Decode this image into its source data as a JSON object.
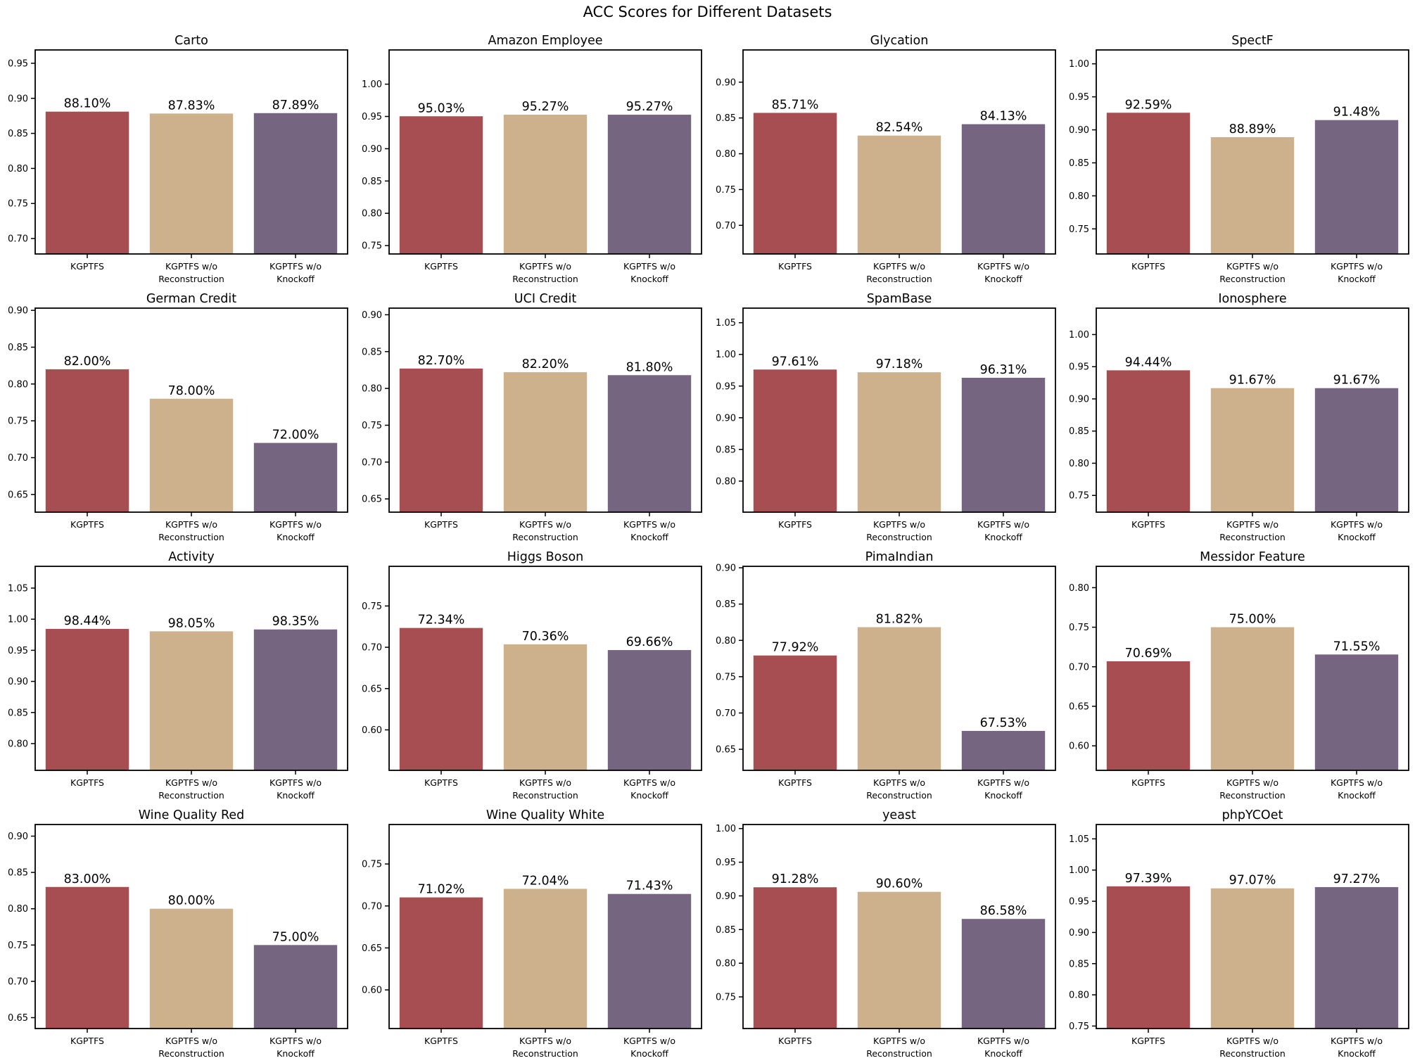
{
  "chart_data": {
    "type": "bar-grid",
    "suptitle": "ACC Scores for Different Datasets",
    "grid_rows": 4,
    "grid_cols": 4,
    "categories": [
      "KGPTFS",
      "KGPTFS w/o\nReconstruction",
      "KGPTFS w/o\nKnockoff"
    ],
    "series_colors": [
      "#A64E52",
      "#CCB18C",
      "#756580"
    ],
    "axis_color": "#000000",
    "background_color": "#ffffff",
    "grid_lines": false,
    "legend": "none",
    "ytick_format": "2-decimal",
    "subplots": [
      {
        "title": "Carto",
        "values": [
          0.881,
          0.8783,
          0.8789
        ],
        "labels": [
          "88.10%",
          "87.83%",
          "87.89%"
        ],
        "yticks": [
          0.7,
          0.75,
          0.8,
          0.85,
          0.9,
          0.95
        ],
        "ylim": [
          0.678,
          0.969
        ]
      },
      {
        "title": "Amazon Employee",
        "values": [
          0.9503,
          0.9527,
          0.9527
        ],
        "labels": [
          "95.03%",
          "95.27%",
          "95.27%"
        ],
        "yticks": [
          0.75,
          0.8,
          0.85,
          0.9,
          0.95,
          1.0
        ],
        "ylim": [
          0.737,
          1.053
        ]
      },
      {
        "title": "Glycation",
        "values": [
          0.8571,
          0.8254,
          0.8413
        ],
        "labels": [
          "85.71%",
          "82.54%",
          "84.13%"
        ],
        "yticks": [
          0.7,
          0.75,
          0.8,
          0.85,
          0.9
        ],
        "ylim": [
          0.66,
          0.945
        ]
      },
      {
        "title": "SpectF",
        "values": [
          0.9259,
          0.8889,
          0.9148
        ],
        "labels": [
          "92.59%",
          "88.89%",
          "91.48%"
        ],
        "yticks": [
          0.75,
          0.8,
          0.85,
          0.9,
          0.95,
          1.0
        ],
        "ylim": [
          0.712,
          1.021
        ]
      },
      {
        "title": "German Credit",
        "values": [
          0.82,
          0.78,
          0.72
        ],
        "labels": [
          "82.00%",
          "78.00%",
          "72.00%"
        ],
        "yticks": [
          0.65,
          0.7,
          0.75,
          0.8,
          0.85,
          0.9
        ],
        "ylim": [
          0.626,
          0.903
        ]
      },
      {
        "title": "UCI Credit",
        "values": [
          0.827,
          0.822,
          0.818
        ],
        "labels": [
          "82.70%",
          "82.20%",
          "81.80%"
        ],
        "yticks": [
          0.65,
          0.7,
          0.75,
          0.8,
          0.85,
          0.9
        ],
        "ylim": [
          0.632,
          0.909
        ]
      },
      {
        "title": "SpamBase",
        "values": [
          0.9761,
          0.9718,
          0.9631
        ],
        "labels": [
          "97.61%",
          "97.18%",
          "96.31%"
        ],
        "yticks": [
          0.8,
          0.85,
          0.9,
          0.95,
          1.0,
          1.05
        ],
        "ylim": [
          0.751,
          1.073
        ]
      },
      {
        "title": "Ionosphere",
        "values": [
          0.9444,
          0.9167,
          0.9167
        ],
        "labels": [
          "94.44%",
          "91.67%",
          "91.67%"
        ],
        "yticks": [
          0.75,
          0.8,
          0.85,
          0.9,
          0.95,
          1.0
        ],
        "ylim": [
          0.724,
          1.041
        ]
      },
      {
        "title": "Activity",
        "values": [
          0.9844,
          0.9805,
          0.9835
        ],
        "labels": [
          "98.44%",
          "98.05%",
          "98.35%"
        ],
        "yticks": [
          0.8,
          0.85,
          0.9,
          0.95,
          1.0,
          1.05
        ],
        "ylim": [
          0.757,
          1.085
        ]
      },
      {
        "title": "Higgs Boson",
        "values": [
          0.7234,
          0.7036,
          0.6966
        ],
        "labels": [
          "72.34%",
          "70.36%",
          "69.66%"
        ],
        "yticks": [
          0.6,
          0.65,
          0.7,
          0.75
        ],
        "ylim": [
          0.551,
          0.798
        ]
      },
      {
        "title": "PimaIndian",
        "values": [
          0.7792,
          0.8182,
          0.6753
        ],
        "labels": [
          "77.92%",
          "81.82%",
          "67.53%"
        ],
        "yticks": [
          0.65,
          0.7,
          0.75,
          0.8,
          0.85,
          0.9
        ],
        "ylim": [
          0.621,
          0.902
        ]
      },
      {
        "title": "Messidor Feature",
        "values": [
          0.7069,
          0.75,
          0.7155
        ],
        "labels": [
          "70.69%",
          "75.00%",
          "71.55%"
        ],
        "yticks": [
          0.6,
          0.65,
          0.7,
          0.75,
          0.8
        ],
        "ylim": [
          0.569,
          0.827
        ]
      },
      {
        "title": "Wine Quality Red",
        "values": [
          0.83,
          0.8,
          0.75
        ],
        "labels": [
          "83.00%",
          "80.00%",
          "75.00%"
        ],
        "yticks": [
          0.65,
          0.7,
          0.75,
          0.8,
          0.85,
          0.9
        ],
        "ylim": [
          0.635,
          0.916
        ]
      },
      {
        "title": "Wine Quality White",
        "values": [
          0.7102,
          0.7204,
          0.7143
        ],
        "labels": [
          "71.02%",
          "72.04%",
          "71.43%"
        ],
        "yticks": [
          0.6,
          0.65,
          0.7,
          0.75
        ],
        "ylim": [
          0.554,
          0.797
        ]
      },
      {
        "title": "yeast",
        "values": [
          0.9128,
          0.906,
          0.8658
        ],
        "labels": [
          "91.28%",
          "90.60%",
          "86.58%"
        ],
        "yticks": [
          0.75,
          0.8,
          0.85,
          0.9,
          0.95,
          1.0
        ],
        "ylim": [
          0.703,
          1.006
        ]
      },
      {
        "title": "phpYCOet",
        "values": [
          0.9739,
          0.9707,
          0.9727
        ],
        "labels": [
          "97.39%",
          "97.07%",
          "97.27%"
        ],
        "yticks": [
          0.75,
          0.8,
          0.85,
          0.9,
          0.95,
          1.0,
          1.05
        ],
        "ylim": [
          0.746,
          1.073
        ]
      }
    ]
  }
}
